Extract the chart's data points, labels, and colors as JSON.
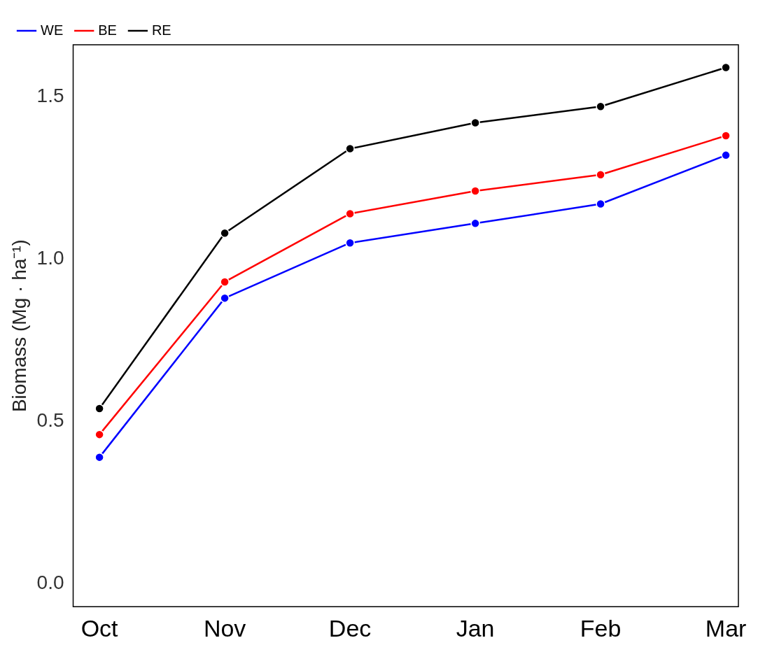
{
  "chart_data": {
    "type": "line",
    "ylabel": "Biomass (Mg · ha⁻¹)",
    "categories": [
      "Oct",
      "Nov",
      "Dec",
      "Jan",
      "Feb",
      "Mar"
    ],
    "series": [
      {
        "name": "WE",
        "color": "#0000ff",
        "values": [
          0.39,
          0.88,
          1.05,
          1.11,
          1.17,
          1.32
        ]
      },
      {
        "name": "BE",
        "color": "#ff0000",
        "values": [
          0.46,
          0.93,
          1.14,
          1.21,
          1.26,
          1.38
        ]
      },
      {
        "name": "RE",
        "color": "#000000",
        "values": [
          0.54,
          1.08,
          1.34,
          1.42,
          1.47,
          1.59
        ]
      }
    ],
    "ylim": [
      -0.07,
      1.66
    ],
    "yticks": [
      {
        "value": 0,
        "label": "0.0"
      },
      {
        "value": 0.5,
        "label": "0.5"
      },
      {
        "value": 1,
        "label": "1.0"
      },
      {
        "value": 1.5,
        "label": "1.5"
      }
    ],
    "grid": false,
    "legend": "top left",
    "marker": "circle",
    "line_style": "solid"
  }
}
